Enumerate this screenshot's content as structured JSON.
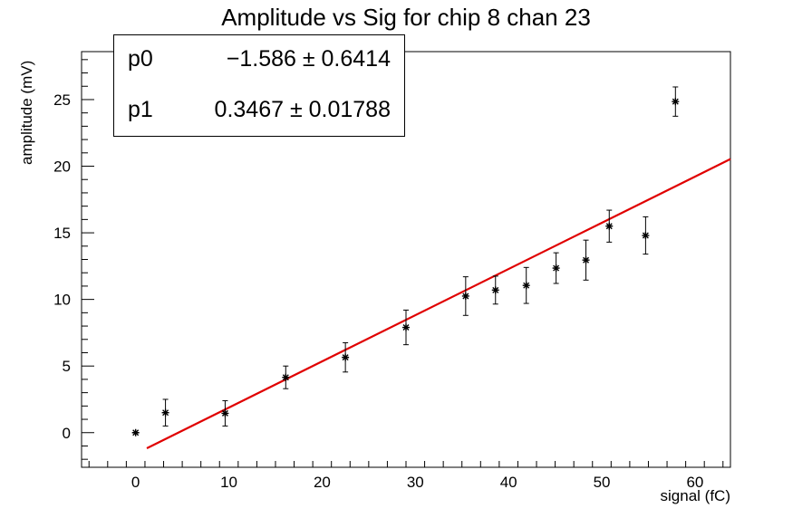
{
  "chart_data": {
    "type": "scatter",
    "title": "Amplitude vs Sig for chip 8 chan 23",
    "xlabel": "signal (fC)",
    "ylabel": "amplitude (mV)",
    "xlim": [
      -5.8,
      63.8
    ],
    "ylim": [
      -2.6,
      28.6
    ],
    "xticks": [
      0,
      10,
      20,
      30,
      40,
      50,
      60
    ],
    "yticks": [
      0,
      5,
      10,
      15,
      20,
      25
    ],
    "grid": false,
    "points": [
      {
        "x": 0.0,
        "y": 0.0,
        "err": 0.0
      },
      {
        "x": 3.2,
        "y": 1.5,
        "err": 1.0
      },
      {
        "x": 9.6,
        "y": 1.45,
        "err": 0.95
      },
      {
        "x": 16.1,
        "y": 4.15,
        "err": 0.85
      },
      {
        "x": 22.5,
        "y": 5.65,
        "err": 1.1
      },
      {
        "x": 29.0,
        "y": 7.9,
        "err": 1.3
      },
      {
        "x": 35.4,
        "y": 10.25,
        "err": 1.45
      },
      {
        "x": 38.6,
        "y": 10.7,
        "err": 1.05
      },
      {
        "x": 41.9,
        "y": 11.05,
        "err": 1.35
      },
      {
        "x": 45.1,
        "y": 12.35,
        "err": 1.15
      },
      {
        "x": 48.3,
        "y": 12.95,
        "err": 1.5
      },
      {
        "x": 50.8,
        "y": 15.5,
        "err": 1.2
      },
      {
        "x": 54.7,
        "y": 14.8,
        "err": 1.4
      },
      {
        "x": 57.9,
        "y": 24.85,
        "err": 1.1
      }
    ],
    "fit": {
      "function": "pol1",
      "x_range": [
        1.2,
        63.8
      ],
      "color": "#e00000"
    },
    "stats": [
      {
        "name": "p0",
        "value": "−1.586 ± 0.6414"
      },
      {
        "name": "p1",
        "value": "0.3467 ± 0.01788"
      }
    ],
    "fit_params": {
      "p0": -1.586,
      "p1": 0.3467
    }
  }
}
